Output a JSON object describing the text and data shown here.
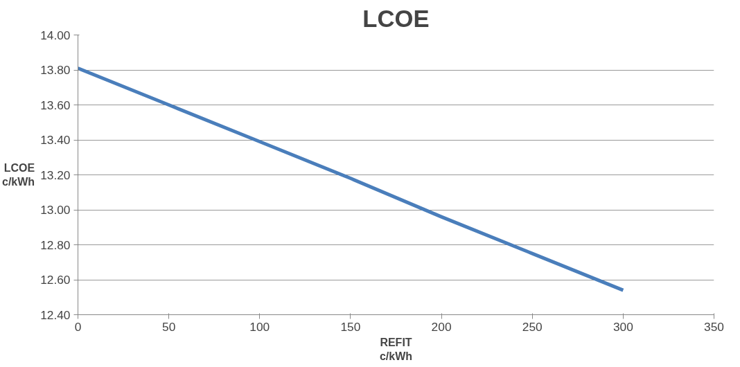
{
  "chart_data": {
    "type": "line",
    "title": "LCOE",
    "xlabel": "REFIT\nc/kWh",
    "ylabel": "LCOE\nc/kWh",
    "x": [
      0,
      50,
      100,
      150,
      200,
      250,
      300
    ],
    "series": [
      {
        "color": "#4a7ebb",
        "values": [
          13.81,
          13.6,
          13.39,
          13.18,
          12.96,
          12.75,
          12.54
        ]
      }
    ],
    "xlim": [
      0,
      350
    ],
    "xticks": [
      0,
      50,
      100,
      150,
      200,
      250,
      300,
      350
    ],
    "ylim": [
      12.4,
      14.0
    ],
    "yticks": [
      {
        "value": 12.4,
        "label": "12.40"
      },
      {
        "value": 12.6,
        "label": "12.60"
      },
      {
        "value": 12.8,
        "label": "12.80"
      },
      {
        "value": 13.0,
        "label": "13.00"
      },
      {
        "value": 13.2,
        "label": "13.20"
      },
      {
        "value": 13.4,
        "label": "13.40"
      },
      {
        "value": 13.6,
        "label": "13.60"
      },
      {
        "value": 13.8,
        "label": "13.80"
      },
      {
        "value": 14.0,
        "label": "14.00"
      }
    ],
    "grid": "y",
    "marker": "none",
    "line_style": "solid"
  }
}
